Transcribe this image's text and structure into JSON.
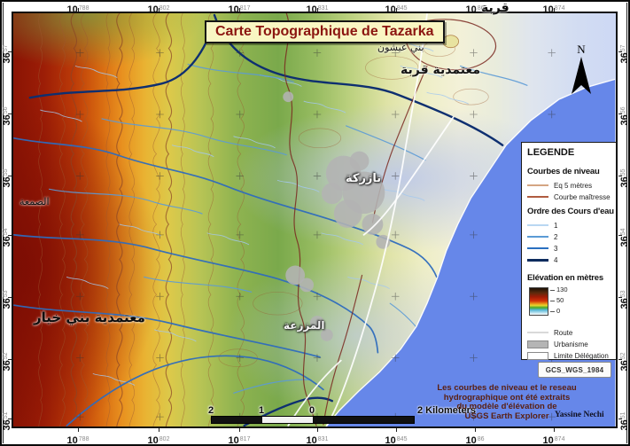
{
  "title": "Carte Topographique de Tazarka",
  "legend": {
    "header": "LEGENDE",
    "contours": {
      "title": "Courbes de niveau",
      "items": [
        {
          "label": "Eq 5 mètres",
          "color": "#d4a583",
          "weight": 1.5
        },
        {
          "label": "Courbe maîtresse",
          "color": "#b05c40",
          "weight": 2
        }
      ]
    },
    "streams": {
      "title": "Ordre des Cours d'eau",
      "items": [
        {
          "label": "1",
          "color": "#b9d7f2",
          "weight": 1.5
        },
        {
          "label": "2",
          "color": "#5b9bd5",
          "weight": 2
        },
        {
          "label": "3",
          "color": "#2a70c0",
          "weight": 2.5
        },
        {
          "label": "4",
          "color": "#0d2b5e",
          "weight": 3
        }
      ]
    },
    "elevation": {
      "title": "Elévation en mètres",
      "ticks": [
        "130",
        "50",
        "0"
      ],
      "ramp": [
        "#1d1006",
        "#5a2a0c",
        "#a01c06",
        "#d03008",
        "#e89018",
        "#e8d830",
        "#48a828",
        "#58b8d8",
        "#ffffff"
      ]
    },
    "other": [
      {
        "label": "Route",
        "swatch": "line-light"
      },
      {
        "label": "Urbanisme",
        "swatch": "fill-gray"
      },
      {
        "label": "Limite Délégation",
        "swatch": "fill-white"
      }
    ]
  },
  "projection": "GCS_WGS_1984",
  "north_label": "N",
  "scalebar": {
    "ticks": [
      "2",
      "1",
      "0"
    ],
    "unit_label": "2 Kilometers"
  },
  "attribution": {
    "lines": [
      "Les courbes de niveau et le reseau",
      "hydrographique ont été extraits",
      "du modèle d'élévation de",
      "USGS Earth Explorer"
    ],
    "author": "Yassine Nechi"
  },
  "coordinates": {
    "top": [
      {
        "b": "10",
        "s": "788"
      },
      {
        "b": "10",
        "s": "802"
      },
      {
        "b": "10",
        "s": "817"
      },
      {
        "b": "10",
        "s": "831"
      },
      {
        "b": "10",
        "s": "845"
      },
      {
        "b": "10",
        "s": "86"
      },
      {
        "b": "10",
        "s": "874"
      }
    ],
    "bottom": [
      {
        "b": "10",
        "s": "788"
      },
      {
        "b": "10",
        "s": "802"
      },
      {
        "b": "10",
        "s": "817"
      },
      {
        "b": "10",
        "s": "831"
      },
      {
        "b": "10",
        "s": "845"
      },
      {
        "b": "10",
        "s": "86"
      },
      {
        "b": "10",
        "s": "874"
      }
    ],
    "left": [
      {
        "b": "36",
        "s": "57"
      },
      {
        "b": "36",
        "s": "56"
      },
      {
        "b": "36",
        "s": "55"
      },
      {
        "b": "36",
        "s": "54"
      },
      {
        "b": "36",
        "s": "53"
      },
      {
        "b": "36",
        "s": "52"
      },
      {
        "b": "36",
        "s": "51"
      }
    ],
    "right": [
      {
        "b": "36",
        "s": "57"
      },
      {
        "b": "36",
        "s": "56"
      },
      {
        "b": "36",
        "s": "55"
      },
      {
        "b": "36",
        "s": "54"
      },
      {
        "b": "36",
        "s": "53"
      },
      {
        "b": "36",
        "s": "52"
      },
      {
        "b": "36",
        "s": "51"
      }
    ]
  },
  "places": [
    {
      "name": "قربة"
    },
    {
      "name": "بني عيشون"
    },
    {
      "name": "معتمدية قربة"
    },
    {
      "name": "تازركة"
    },
    {
      "name": "الصمعة"
    },
    {
      "name": "معتمدية بني خيار"
    },
    {
      "name": "المزرعة"
    }
  ],
  "map_colors": {
    "sea": "#6687e9",
    "urban": "#b3b3b3",
    "contour": "#9c5a32",
    "contour_major": "#8a4526",
    "road": "#ffffff",
    "boundary": "#7a2820",
    "stream1": "#a3c8ef",
    "stream2": "#5b9ad6",
    "stream3": "#2e6cbd",
    "stream4": "#0e2f70"
  }
}
